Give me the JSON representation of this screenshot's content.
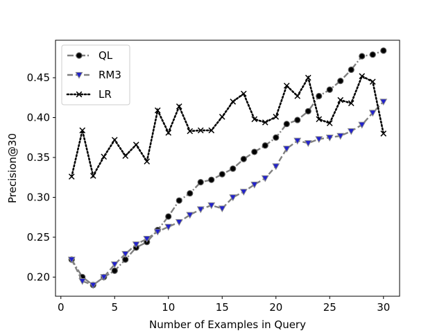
{
  "chart_data": {
    "type": "line",
    "xlabel": "Number of Examples in Query",
    "ylabel": "Precision@30",
    "xlim": [
      -0.5,
      31.5
    ],
    "ylim": [
      0.176,
      0.497
    ],
    "xticks": [
      0,
      5,
      10,
      15,
      20,
      25,
      30
    ],
    "xtick_labels": [
      "0",
      "5",
      "10",
      "15",
      "20",
      "25",
      "30"
    ],
    "yticks": [
      0.2,
      0.25,
      0.3,
      0.35,
      0.4,
      0.45
    ],
    "ytick_labels": [
      "0.20",
      "0.25",
      "0.30",
      "0.35",
      "0.40",
      "0.45"
    ],
    "grid": false,
    "legend_position": "top-left",
    "x": [
      1,
      2,
      3,
      4,
      5,
      6,
      7,
      8,
      9,
      10,
      11,
      12,
      13,
      14,
      15,
      16,
      17,
      18,
      19,
      20,
      21,
      22,
      23,
      24,
      25,
      26,
      27,
      28,
      29,
      30
    ],
    "series": [
      {
        "name": "QL",
        "line_color": "#808080",
        "line_style": "dashdot",
        "marker": "circle",
        "marker_color": "#000000",
        "values": [
          0.222,
          0.2,
          0.19,
          0.2,
          0.208,
          0.222,
          0.237,
          0.244,
          0.259,
          0.276,
          0.296,
          0.305,
          0.319,
          0.322,
          0.329,
          0.336,
          0.348,
          0.357,
          0.365,
          0.375,
          0.392,
          0.397,
          0.408,
          0.427,
          0.435,
          0.446,
          0.46,
          0.477,
          0.479,
          0.484
        ]
      },
      {
        "name": "RM3",
        "line_color": "#808080",
        "line_style": "dashed",
        "marker": "triangle-down",
        "marker_color": "#2222cc",
        "values": [
          0.222,
          0.195,
          0.19,
          0.2,
          0.216,
          0.229,
          0.241,
          0.248,
          0.257,
          0.263,
          0.269,
          0.278,
          0.285,
          0.29,
          0.286,
          0.3,
          0.307,
          0.316,
          0.324,
          0.339,
          0.361,
          0.371,
          0.368,
          0.373,
          0.375,
          0.377,
          0.383,
          0.391,
          0.406,
          0.42
        ]
      },
      {
        "name": "LR",
        "line_color": "#000000",
        "line_style": "dotted",
        "marker": "x",
        "marker_color": "#000000",
        "values": [
          0.326,
          0.384,
          0.327,
          0.351,
          0.372,
          0.352,
          0.366,
          0.345,
          0.409,
          0.381,
          0.414,
          0.383,
          0.384,
          0.384,
          0.401,
          0.42,
          0.43,
          0.398,
          0.394,
          0.401,
          0.44,
          0.427,
          0.45,
          0.398,
          0.393,
          0.422,
          0.418,
          0.452,
          0.445,
          0.38
        ]
      }
    ]
  }
}
